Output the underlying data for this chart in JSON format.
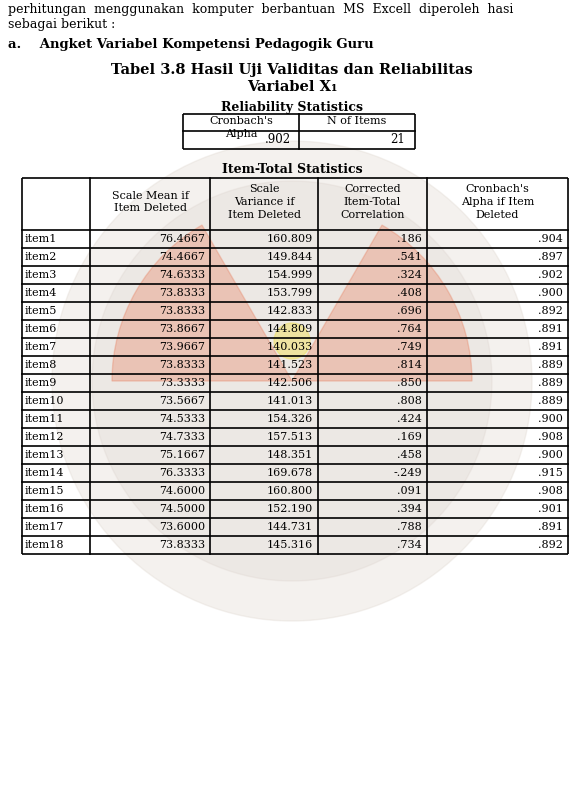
{
  "title_line1": "Tabel 3.8 Hasil Uji Validitas dan Reliabilitas",
  "title_line2": "Variabel X₁",
  "heading": "a.    Angket Variabel Kompetensi Pedagogik Guru",
  "top_text_line1": "perhitungan  menggunakan  komputer  berbantuan  MS  Excell  diperoleh  hasi",
  "top_text_line2": "sebagai berikut :",
  "reliability_label": "Reliability Statistics",
  "item_total_label": "Item-Total Statistics",
  "items": [
    "item1",
    "item2",
    "item3",
    "item4",
    "item5",
    "item6",
    "item7",
    "item8",
    "item9",
    "item10",
    "item11",
    "item12",
    "item13",
    "item14",
    "item15",
    "item16",
    "item17",
    "item18"
  ],
  "scale_mean": [
    "76.4667",
    "74.4667",
    "74.6333",
    "73.8333",
    "73.8333",
    "73.8667",
    "73.9667",
    "73.8333",
    "73.3333",
    "73.5667",
    "74.5333",
    "74.7333",
    "75.1667",
    "76.3333",
    "74.6000",
    "74.5000",
    "73.6000",
    "73.8333"
  ],
  "scale_variance": [
    "160.809",
    "149.844",
    "154.999",
    "153.799",
    "142.833",
    "144.809",
    "140.033",
    "141.523",
    "142.506",
    "141.013",
    "154.326",
    "157.513",
    "148.351",
    "169.678",
    "160.800",
    "152.190",
    "144.731",
    "145.316"
  ],
  "corrected_corr": [
    ".186",
    ".541",
    ".324",
    ".408",
    ".696",
    ".764",
    ".749",
    ".814",
    ".850",
    ".808",
    ".424",
    ".169",
    ".458",
    "-.249",
    ".091",
    ".394",
    ".788",
    ".734"
  ],
  "cronbach_alpha_if": [
    ".904",
    ".897",
    ".902",
    ".900",
    ".892",
    ".891",
    ".891",
    ".889",
    ".889",
    ".889",
    ".900",
    ".908",
    ".900",
    ".915",
    ".908",
    ".901",
    ".891",
    ".892"
  ],
  "bg_color": "#ffffff",
  "watermark_color1": "#e8c8b8",
  "watermark_color2": "#d4a090",
  "watermark_color3": "#c8b8b0"
}
